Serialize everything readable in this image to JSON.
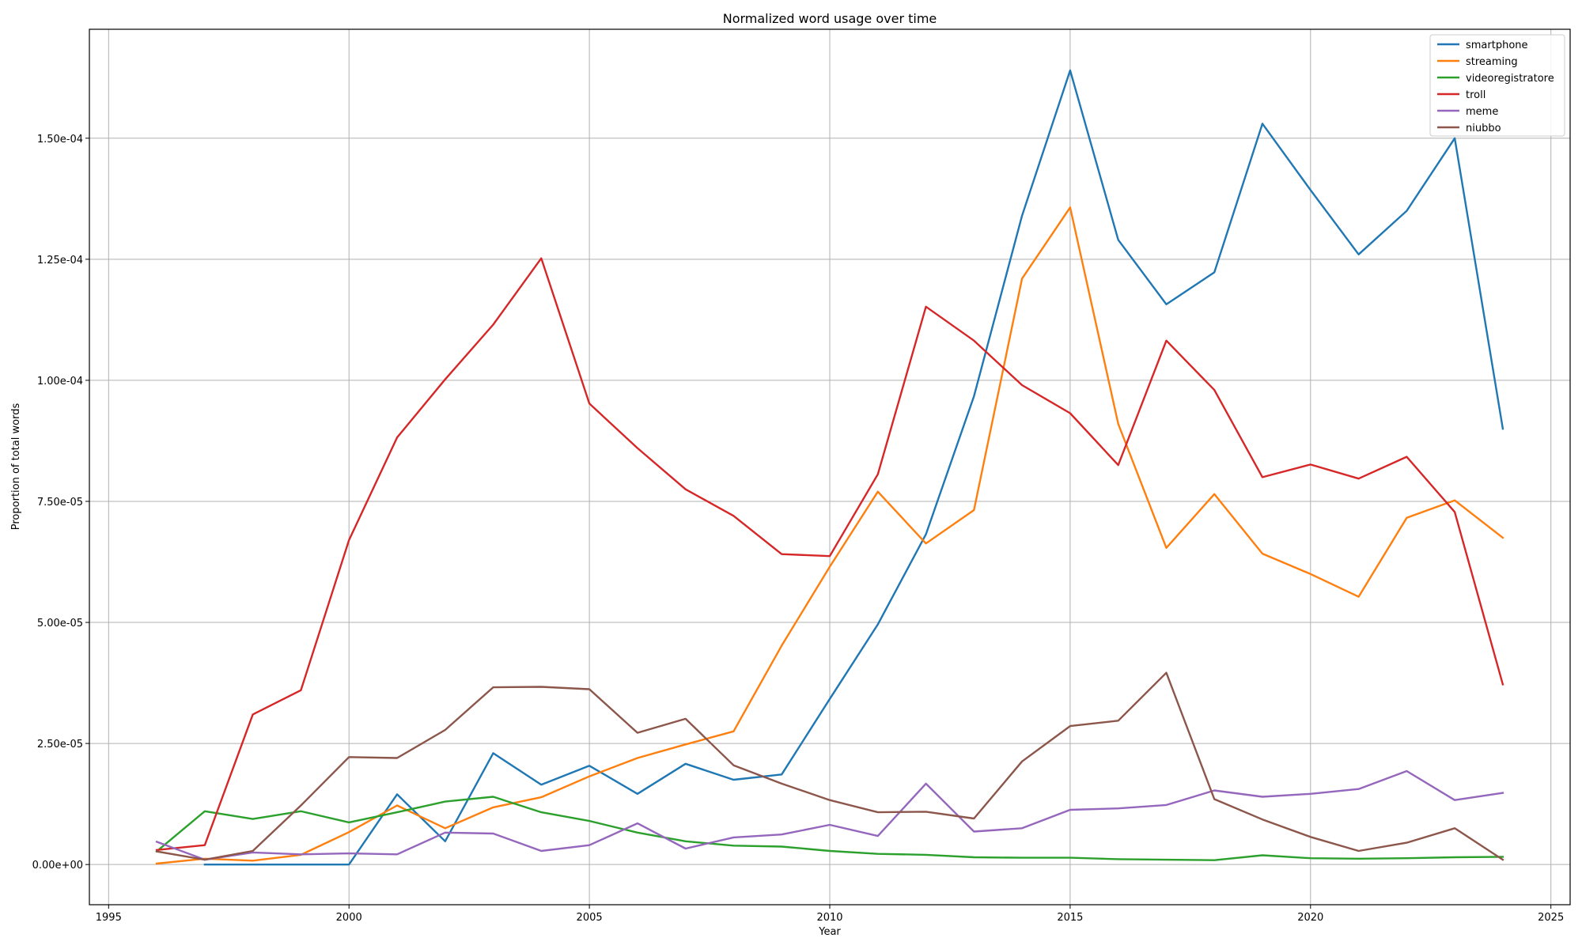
{
  "chart_data": {
    "type": "line",
    "title": "Normalized word usage over time",
    "xlabel": "Year",
    "ylabel": "Proportion of total words",
    "xlim": [
      1994.6,
      2025.4
    ],
    "ylim": [
      -8.3e-06,
      0.0001725
    ],
    "xticks": [
      1995,
      2000,
      2005,
      2010,
      2015,
      2020,
      2025
    ],
    "yticks": [
      0,
      2.5e-05,
      5e-05,
      7.5e-05,
      0.0001,
      0.000125,
      0.00015
    ],
    "ytick_labels": [
      "0.00e+00",
      "2.50e-05",
      "5.00e-05",
      "7.50e-05",
      "1.00e-04",
      "1.25e-04",
      "1.50e-04"
    ],
    "grid": true,
    "legend_position": "top-right",
    "series": [
      {
        "name": "smartphone",
        "color": "#1f77b4",
        "x": [
          1997,
          1998,
          1999,
          2000,
          2001,
          2002,
          2003,
          2004,
          2005,
          2006,
          2007,
          2008,
          2009,
          2010,
          2011,
          2012,
          2013,
          2014,
          2015,
          2016,
          2017,
          2018,
          2019,
          2020,
          2021,
          2022,
          2023,
          2024
        ],
        "values": [
          0.0,
          0.0,
          0.0,
          0.0,
          1.45e-05,
          4.8e-06,
          2.3e-05,
          1.65e-05,
          2.04e-05,
          1.46e-05,
          2.08e-05,
          1.75e-05,
          1.86e-05,
          3.42e-05,
          4.96e-05,
          6.82e-05,
          9.67e-05,
          0.000134,
          0.000164,
          0.000129,
          0.0001157,
          0.0001223,
          0.000153,
          0.0001393,
          0.000126,
          0.000135,
          0.00015,
          9e-05
        ]
      },
      {
        "name": "streaming",
        "color": "#ff7f0e",
        "x": [
          1996,
          1997,
          1998,
          1999,
          2000,
          2001,
          2002,
          2003,
          2004,
          2005,
          2006,
          2007,
          2008,
          2009,
          2010,
          2011,
          2012,
          2013,
          2014,
          2015,
          2016,
          2017,
          2018,
          2019,
          2020,
          2021,
          2022,
          2023,
          2024
        ],
        "values": [
          2e-07,
          1.2e-06,
          8e-07,
          2e-06,
          6.7e-06,
          1.22e-05,
          7.5e-06,
          1.18e-05,
          1.39e-05,
          1.82e-05,
          2.2e-05,
          2.48e-05,
          2.75e-05,
          4.52e-05,
          6.15e-05,
          7.7e-05,
          6.63e-05,
          7.32e-05,
          0.000121,
          0.0001357,
          9.1e-05,
          6.54e-05,
          7.65e-05,
          6.42e-05,
          6e-05,
          5.53e-05,
          7.16e-05,
          7.52e-05,
          6.75e-05
        ]
      },
      {
        "name": "videoregistratore",
        "color": "#2ca02c",
        "x": [
          1996,
          1997,
          1998,
          1999,
          2000,
          2001,
          2002,
          2003,
          2004,
          2005,
          2006,
          2007,
          2008,
          2009,
          2010,
          2011,
          2012,
          2013,
          2014,
          2015,
          2016,
          2017,
          2018,
          2019,
          2020,
          2021,
          2022,
          2023,
          2024
        ],
        "values": [
          2.7e-06,
          1.1e-05,
          9.4e-06,
          1.1e-05,
          8.7e-06,
          1.08e-05,
          1.3e-05,
          1.4e-05,
          1.08e-05,
          9e-06,
          6.6e-06,
          4.8e-06,
          3.9e-06,
          3.7e-06,
          2.8e-06,
          2.2e-06,
          2e-06,
          1.5e-06,
          1.4e-06,
          1.4e-06,
          1.1e-06,
          1e-06,
          9e-07,
          1.9e-06,
          1.3e-06,
          1.2e-06,
          1.3e-06,
          1.5e-06,
          1.6e-06
        ]
      },
      {
        "name": "troll",
        "color": "#d62728",
        "x": [
          1996,
          1997,
          1998,
          1999,
          2000,
          2001,
          2002,
          2003,
          2004,
          2005,
          2006,
          2007,
          2008,
          2009,
          2010,
          2011,
          2012,
          2013,
          2014,
          2015,
          2016,
          2017,
          2018,
          2019,
          2020,
          2021,
          2022,
          2023,
          2024
        ],
        "values": [
          3e-06,
          4e-06,
          3.1e-05,
          3.6e-05,
          6.7e-05,
          8.82e-05,
          0.0001002,
          0.0001115,
          0.0001252,
          9.52e-05,
          8.6e-05,
          7.75e-05,
          7.2e-05,
          6.41e-05,
          6.37e-05,
          8.06e-05,
          0.0001152,
          0.0001082,
          9.9e-05,
          9.32e-05,
          8.25e-05,
          0.0001082,
          9.8e-05,
          8e-05,
          8.26e-05,
          7.97e-05,
          8.42e-05,
          7.28e-05,
          3.72e-05
        ]
      },
      {
        "name": "meme",
        "color": "#9467bd",
        "x": [
          1996,
          1997,
          1998,
          1999,
          2000,
          2001,
          2002,
          2003,
          2004,
          2005,
          2006,
          2007,
          2008,
          2009,
          2010,
          2011,
          2012,
          2013,
          2014,
          2015,
          2016,
          2017,
          2018,
          2019,
          2020,
          2021,
          2022,
          2023,
          2024
        ],
        "values": [
          4.7e-06,
          1e-06,
          2.5e-06,
          2.1e-06,
          2.3e-06,
          2.1e-06,
          6.6e-06,
          6.4e-06,
          2.8e-06,
          4e-06,
          8.5e-06,
          3.3e-06,
          5.6e-06,
          6.2e-06,
          8.2e-06,
          5.9e-06,
          1.67e-05,
          6.8e-06,
          7.5e-06,
          1.13e-05,
          1.16e-05,
          1.23e-05,
          1.53e-05,
          1.4e-05,
          1.46e-05,
          1.56e-05,
          1.93e-05,
          1.33e-05,
          1.48e-05
        ]
      },
      {
        "name": "niubbo",
        "color": "#8c564b",
        "x": [
          1996,
          1997,
          1998,
          1999,
          2000,
          2001,
          2002,
          2003,
          2004,
          2005,
          2006,
          2007,
          2008,
          2009,
          2010,
          2011,
          2012,
          2013,
          2014,
          2015,
          2016,
          2017,
          2018,
          2019,
          2020,
          2021,
          2022,
          2023,
          2024
        ],
        "values": [
          2.7e-06,
          1e-06,
          2.8e-06,
          1.22e-05,
          2.22e-05,
          2.2e-05,
          2.78e-05,
          3.66e-05,
          3.67e-05,
          3.62e-05,
          2.72e-05,
          3.01e-05,
          2.05e-05,
          1.67e-05,
          1.33e-05,
          1.08e-05,
          1.09e-05,
          9.5e-06,
          2.13e-05,
          2.86e-05,
          2.97e-05,
          3.96e-05,
          1.35e-05,
          9.3e-06,
          5.7e-06,
          2.8e-06,
          4.5e-06,
          7.5e-06,
          1e-06
        ]
      }
    ]
  }
}
